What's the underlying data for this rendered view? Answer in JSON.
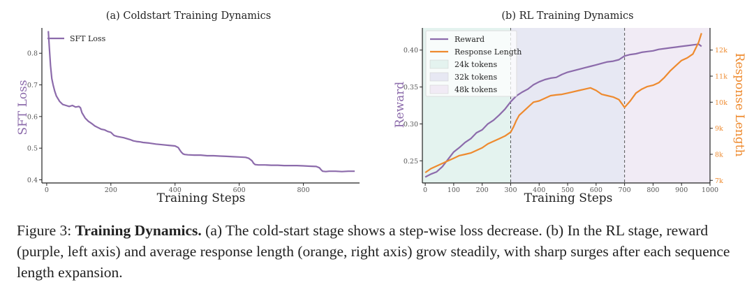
{
  "caption": {
    "prefix": "Figure 3:",
    "bold": "Training Dynamics.",
    "text": "(a) The cold-start stage shows a step-wise loss decrease. (b) In the RL stage, reward (purple, left axis) and average response length (orange, right axis) grow steadily, with sharp surges after each sequence length expansion."
  },
  "colors": {
    "purple": "#8c6bab",
    "orange": "#ee8a2e",
    "axis": "#222222",
    "tick": "#555555"
  },
  "chart_data": [
    {
      "type": "line",
      "title": "(a) Coldstart Training Dynamics",
      "xlabel": "Training Steps",
      "ylabel": "SFT Loss",
      "xlim": [
        -15,
        975
      ],
      "ylim": [
        0.39,
        0.88
      ],
      "xticks": [
        0,
        200,
        400,
        600,
        800
      ],
      "yticks": [
        0.4,
        0.5,
        0.6,
        0.7,
        0.8
      ],
      "ytick_labels": [
        "0.4",
        "0.5",
        "0.6",
        "0.7",
        "0.8"
      ],
      "grid": false,
      "legend_position": "top-left",
      "series": [
        {
          "name": "SFT Loss",
          "color": "#8c6bab",
          "x": [
            5,
            8,
            12,
            16,
            20,
            25,
            30,
            40,
            50,
            60,
            70,
            80,
            90,
            100,
            105,
            110,
            120,
            130,
            140,
            150,
            160,
            170,
            180,
            190,
            200,
            210,
            220,
            230,
            240,
            250,
            260,
            270,
            280,
            290,
            300,
            320,
            340,
            360,
            380,
            400,
            410,
            415,
            420,
            425,
            430,
            440,
            460,
            480,
            500,
            520,
            540,
            560,
            580,
            600,
            620,
            630,
            640,
            645,
            650,
            660,
            680,
            700,
            720,
            740,
            760,
            780,
            800,
            820,
            840,
            850,
            855,
            860,
            870,
            880,
            900,
            920,
            940,
            960
          ],
          "y": [
            0.87,
            0.82,
            0.76,
            0.72,
            0.7,
            0.68,
            0.665,
            0.648,
            0.638,
            0.635,
            0.632,
            0.635,
            0.63,
            0.632,
            0.628,
            0.612,
            0.595,
            0.585,
            0.578,
            0.57,
            0.565,
            0.56,
            0.558,
            0.553,
            0.55,
            0.54,
            0.537,
            0.535,
            0.533,
            0.53,
            0.527,
            0.523,
            0.521,
            0.52,
            0.518,
            0.516,
            0.513,
            0.511,
            0.509,
            0.507,
            0.502,
            0.494,
            0.487,
            0.482,
            0.48,
            0.479,
            0.478,
            0.478,
            0.476,
            0.476,
            0.475,
            0.474,
            0.473,
            0.472,
            0.471,
            0.468,
            0.46,
            0.452,
            0.448,
            0.447,
            0.447,
            0.446,
            0.446,
            0.445,
            0.445,
            0.445,
            0.444,
            0.443,
            0.442,
            0.438,
            0.432,
            0.427,
            0.426,
            0.427,
            0.427,
            0.426,
            0.427,
            0.427
          ]
        }
      ]
    },
    {
      "type": "line",
      "title": "(b) RL Training Dynamics",
      "xlabel": "Training Steps",
      "ylabel": "Reward",
      "y2label": "Response Length",
      "xlim": [
        -10,
        1000
      ],
      "ylim": [
        0.22,
        0.43
      ],
      "y2lim": [
        6900,
        12850
      ],
      "xticks": [
        0,
        100,
        200,
        300,
        400,
        500,
        600,
        700,
        800,
        900,
        1000
      ],
      "yticks": [
        0.25,
        0.3,
        0.35,
        0.4
      ],
      "ytick_labels": [
        "0.25",
        "0.30",
        "0.35",
        "0.40"
      ],
      "y2ticks": [
        7000,
        8000,
        9000,
        10000,
        11000,
        12000
      ],
      "y2tick_labels": [
        "7k",
        "8k",
        "9k",
        "10k",
        "11k",
        "12k"
      ],
      "grid": false,
      "legend_position": "top-left",
      "vlines": [
        300,
        700
      ],
      "regions": [
        {
          "name": "24k tokens",
          "from": -10,
          "to": 300,
          "color": "#e4f3ef"
        },
        {
          "name": "32k tokens",
          "from": 300,
          "to": 700,
          "color": "#e7e8f3"
        },
        {
          "name": "48k tokens",
          "from": 700,
          "to": 1000,
          "color": "#f1ebf5"
        }
      ],
      "series": [
        {
          "name": "Reward",
          "color": "#8c6bab",
          "axis": "left",
          "x": [
            0,
            20,
            40,
            60,
            80,
            100,
            120,
            140,
            160,
            180,
            200,
            220,
            240,
            260,
            280,
            300,
            320,
            340,
            360,
            380,
            400,
            420,
            440,
            460,
            480,
            500,
            520,
            540,
            560,
            580,
            600,
            620,
            640,
            660,
            680,
            700,
            720,
            740,
            760,
            780,
            800,
            820,
            840,
            860,
            880,
            900,
            920,
            940,
            960,
            970
          ],
          "y": [
            0.228,
            0.232,
            0.235,
            0.242,
            0.252,
            0.262,
            0.268,
            0.275,
            0.28,
            0.288,
            0.292,
            0.3,
            0.305,
            0.312,
            0.32,
            0.33,
            0.338,
            0.343,
            0.347,
            0.353,
            0.357,
            0.36,
            0.362,
            0.363,
            0.367,
            0.37,
            0.372,
            0.374,
            0.376,
            0.378,
            0.38,
            0.382,
            0.384,
            0.385,
            0.387,
            0.392,
            0.394,
            0.395,
            0.397,
            0.398,
            0.399,
            0.401,
            0.402,
            0.403,
            0.404,
            0.405,
            0.406,
            0.407,
            0.408,
            0.405
          ]
        },
        {
          "name": "Response Length",
          "color": "#ee8a2e",
          "axis": "right",
          "x": [
            0,
            20,
            40,
            60,
            80,
            100,
            120,
            140,
            160,
            180,
            200,
            220,
            240,
            260,
            280,
            300,
            310,
            320,
            330,
            340,
            360,
            380,
            400,
            420,
            440,
            460,
            480,
            500,
            520,
            540,
            560,
            580,
            600,
            620,
            640,
            660,
            680,
            700,
            720,
            740,
            760,
            780,
            800,
            820,
            840,
            860,
            880,
            900,
            920,
            940,
            960,
            970
          ],
          "y": [
            7300,
            7450,
            7550,
            7650,
            7750,
            7850,
            7950,
            8000,
            8050,
            8150,
            8250,
            8400,
            8500,
            8600,
            8700,
            8850,
            9050,
            9300,
            9500,
            9600,
            9800,
            10000,
            10050,
            10150,
            10250,
            10280,
            10300,
            10350,
            10400,
            10450,
            10500,
            10550,
            10450,
            10300,
            10250,
            10200,
            10100,
            9800,
            10050,
            10350,
            10500,
            10600,
            10650,
            10750,
            10950,
            11200,
            11400,
            11600,
            11700,
            11850,
            12300,
            12650
          ]
        }
      ]
    }
  ]
}
